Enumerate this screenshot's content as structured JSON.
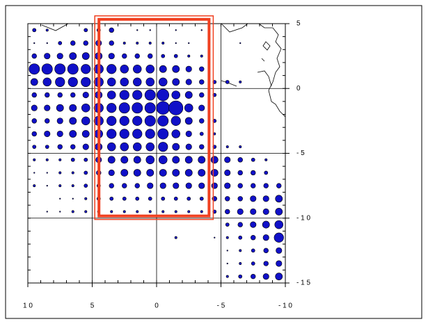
{
  "map": {
    "xlim": [
      10,
      -10
    ],
    "ylim": [
      -15,
      5
    ],
    "xticks": [
      {
        "value": 10,
        "label": "1 0"
      },
      5,
      0,
      {
        "value": -5,
        "label": "- 5"
      },
      {
        "value": -10,
        "label": "- 1 0"
      }
    ],
    "yticks": [
      5,
      0,
      {
        "value": -5,
        "label": "- 5"
      },
      {
        "value": -10,
        "label": "- 1 0"
      },
      {
        "value": -15,
        "label": "- 1 5"
      }
    ],
    "grid": true,
    "pie_color": "#1010c8",
    "highlight_color": "#f04020",
    "highlight_box": {
      "lon": [
        4.8,
        -4.4
      ],
      "lat": [
        5.6,
        -10.1
      ]
    },
    "pies": {
      "lon": [
        9.5,
        8.5,
        7.5,
        6.5,
        5.5,
        4.5,
        3.5,
        2.5,
        1.5,
        0.5,
        -0.5,
        -1.5,
        -2.5,
        -3.5,
        -4.5,
        -5.5,
        -6.5,
        -7.5,
        -8.5,
        -9.5
      ],
      "lat": [
        4.5,
        3.5,
        2.5,
        1.5,
        0.5,
        -0.5,
        -1.5,
        -2.5,
        -3.5,
        -4.5,
        -5.5,
        -6.5,
        -7.5,
        -8.5,
        -9.5,
        -10.5,
        -11.5,
        -12.5,
        -13.5,
        -14.5
      ],
      "size": [
        [
          3,
          2,
          0,
          0,
          3,
          3,
          4,
          0,
          1,
          1,
          0,
          1,
          0,
          1,
          0,
          0,
          0,
          0,
          0,
          0
        ],
        [
          1,
          1,
          3,
          4,
          4,
          5,
          4,
          2,
          2,
          2,
          2,
          1,
          1,
          0,
          0,
          0,
          1,
          0,
          0,
          0
        ],
        [
          4,
          5,
          5,
          6,
          6,
          6,
          5,
          4,
          4,
          4,
          3,
          3,
          2,
          2,
          0,
          0,
          0,
          0,
          0,
          0
        ],
        [
          9,
          9,
          9,
          9,
          8,
          8,
          8,
          7,
          7,
          7,
          6,
          6,
          5,
          4,
          0,
          0,
          0,
          0,
          0,
          0
        ],
        [
          6,
          7,
          8,
          8,
          8,
          8,
          7,
          7,
          7,
          7,
          7,
          6,
          5,
          4,
          3,
          3,
          2,
          0,
          0,
          0
        ],
        [
          4,
          4,
          4,
          4,
          5,
          6,
          7,
          8,
          8,
          9,
          10,
          7,
          6,
          4,
          3,
          0,
          0,
          0,
          0,
          0
        ],
        [
          5,
          5,
          6,
          6,
          7,
          8,
          8,
          9,
          9,
          9,
          11,
          12,
          7,
          5,
          0,
          0,
          0,
          0,
          0,
          0
        ],
        [
          4,
          4,
          5,
          6,
          7,
          8,
          8,
          8,
          8,
          9,
          9,
          8,
          6,
          4,
          3,
          0,
          0,
          0,
          0,
          0
        ],
        [
          4,
          5,
          5,
          6,
          6,
          7,
          8,
          8,
          8,
          8,
          9,
          7,
          5,
          3,
          2,
          0,
          0,
          0,
          0,
          0
        ],
        [
          3,
          3,
          4,
          4,
          5,
          6,
          7,
          7,
          7,
          7,
          8,
          6,
          5,
          4,
          3,
          2,
          2,
          0,
          0,
          0
        ],
        [
          2,
          2,
          2,
          3,
          3,
          5,
          6,
          6,
          6,
          7,
          7,
          6,
          6,
          6,
          6,
          5,
          4,
          3,
          2,
          0
        ],
        [
          1,
          1,
          2,
          2,
          3,
          4,
          5,
          6,
          6,
          6,
          6,
          6,
          6,
          6,
          6,
          5,
          4,
          4,
          3,
          0
        ],
        [
          2,
          1,
          2,
          2,
          3,
          3,
          4,
          4,
          4,
          5,
          5,
          5,
          5,
          5,
          5,
          5,
          4,
          4,
          4,
          4
        ],
        [
          0,
          0,
          1,
          1,
          2,
          3,
          3,
          3,
          3,
          3,
          3,
          3,
          3,
          3,
          4,
          4,
          4,
          5,
          5,
          6
        ],
        [
          0,
          1,
          1,
          2,
          2,
          2,
          2,
          2,
          2,
          2,
          2,
          2,
          2,
          2,
          3,
          4,
          5,
          5,
          5,
          6
        ],
        [
          0,
          0,
          0,
          0,
          0,
          0,
          0,
          0,
          0,
          0,
          0,
          0,
          0,
          0,
          0,
          3,
          4,
          5,
          6,
          7
        ],
        [
          0,
          0,
          0,
          0,
          0,
          0,
          0,
          0,
          0,
          0,
          0,
          2,
          0,
          0,
          1,
          2,
          3,
          4,
          5,
          8
        ],
        [
          0,
          0,
          0,
          0,
          0,
          0,
          0,
          0,
          0,
          0,
          0,
          0,
          0,
          0,
          0,
          1,
          2,
          3,
          4,
          5
        ],
        [
          0,
          0,
          0,
          0,
          0,
          0,
          0,
          0,
          0,
          0,
          0,
          0,
          0,
          0,
          0,
          1,
          2,
          3,
          4,
          5
        ],
        [
          0,
          0,
          0,
          0,
          0,
          0,
          0,
          0,
          0,
          0,
          0,
          0,
          0,
          0,
          0,
          2,
          3,
          4,
          5,
          6
        ]
      ]
    }
  }
}
